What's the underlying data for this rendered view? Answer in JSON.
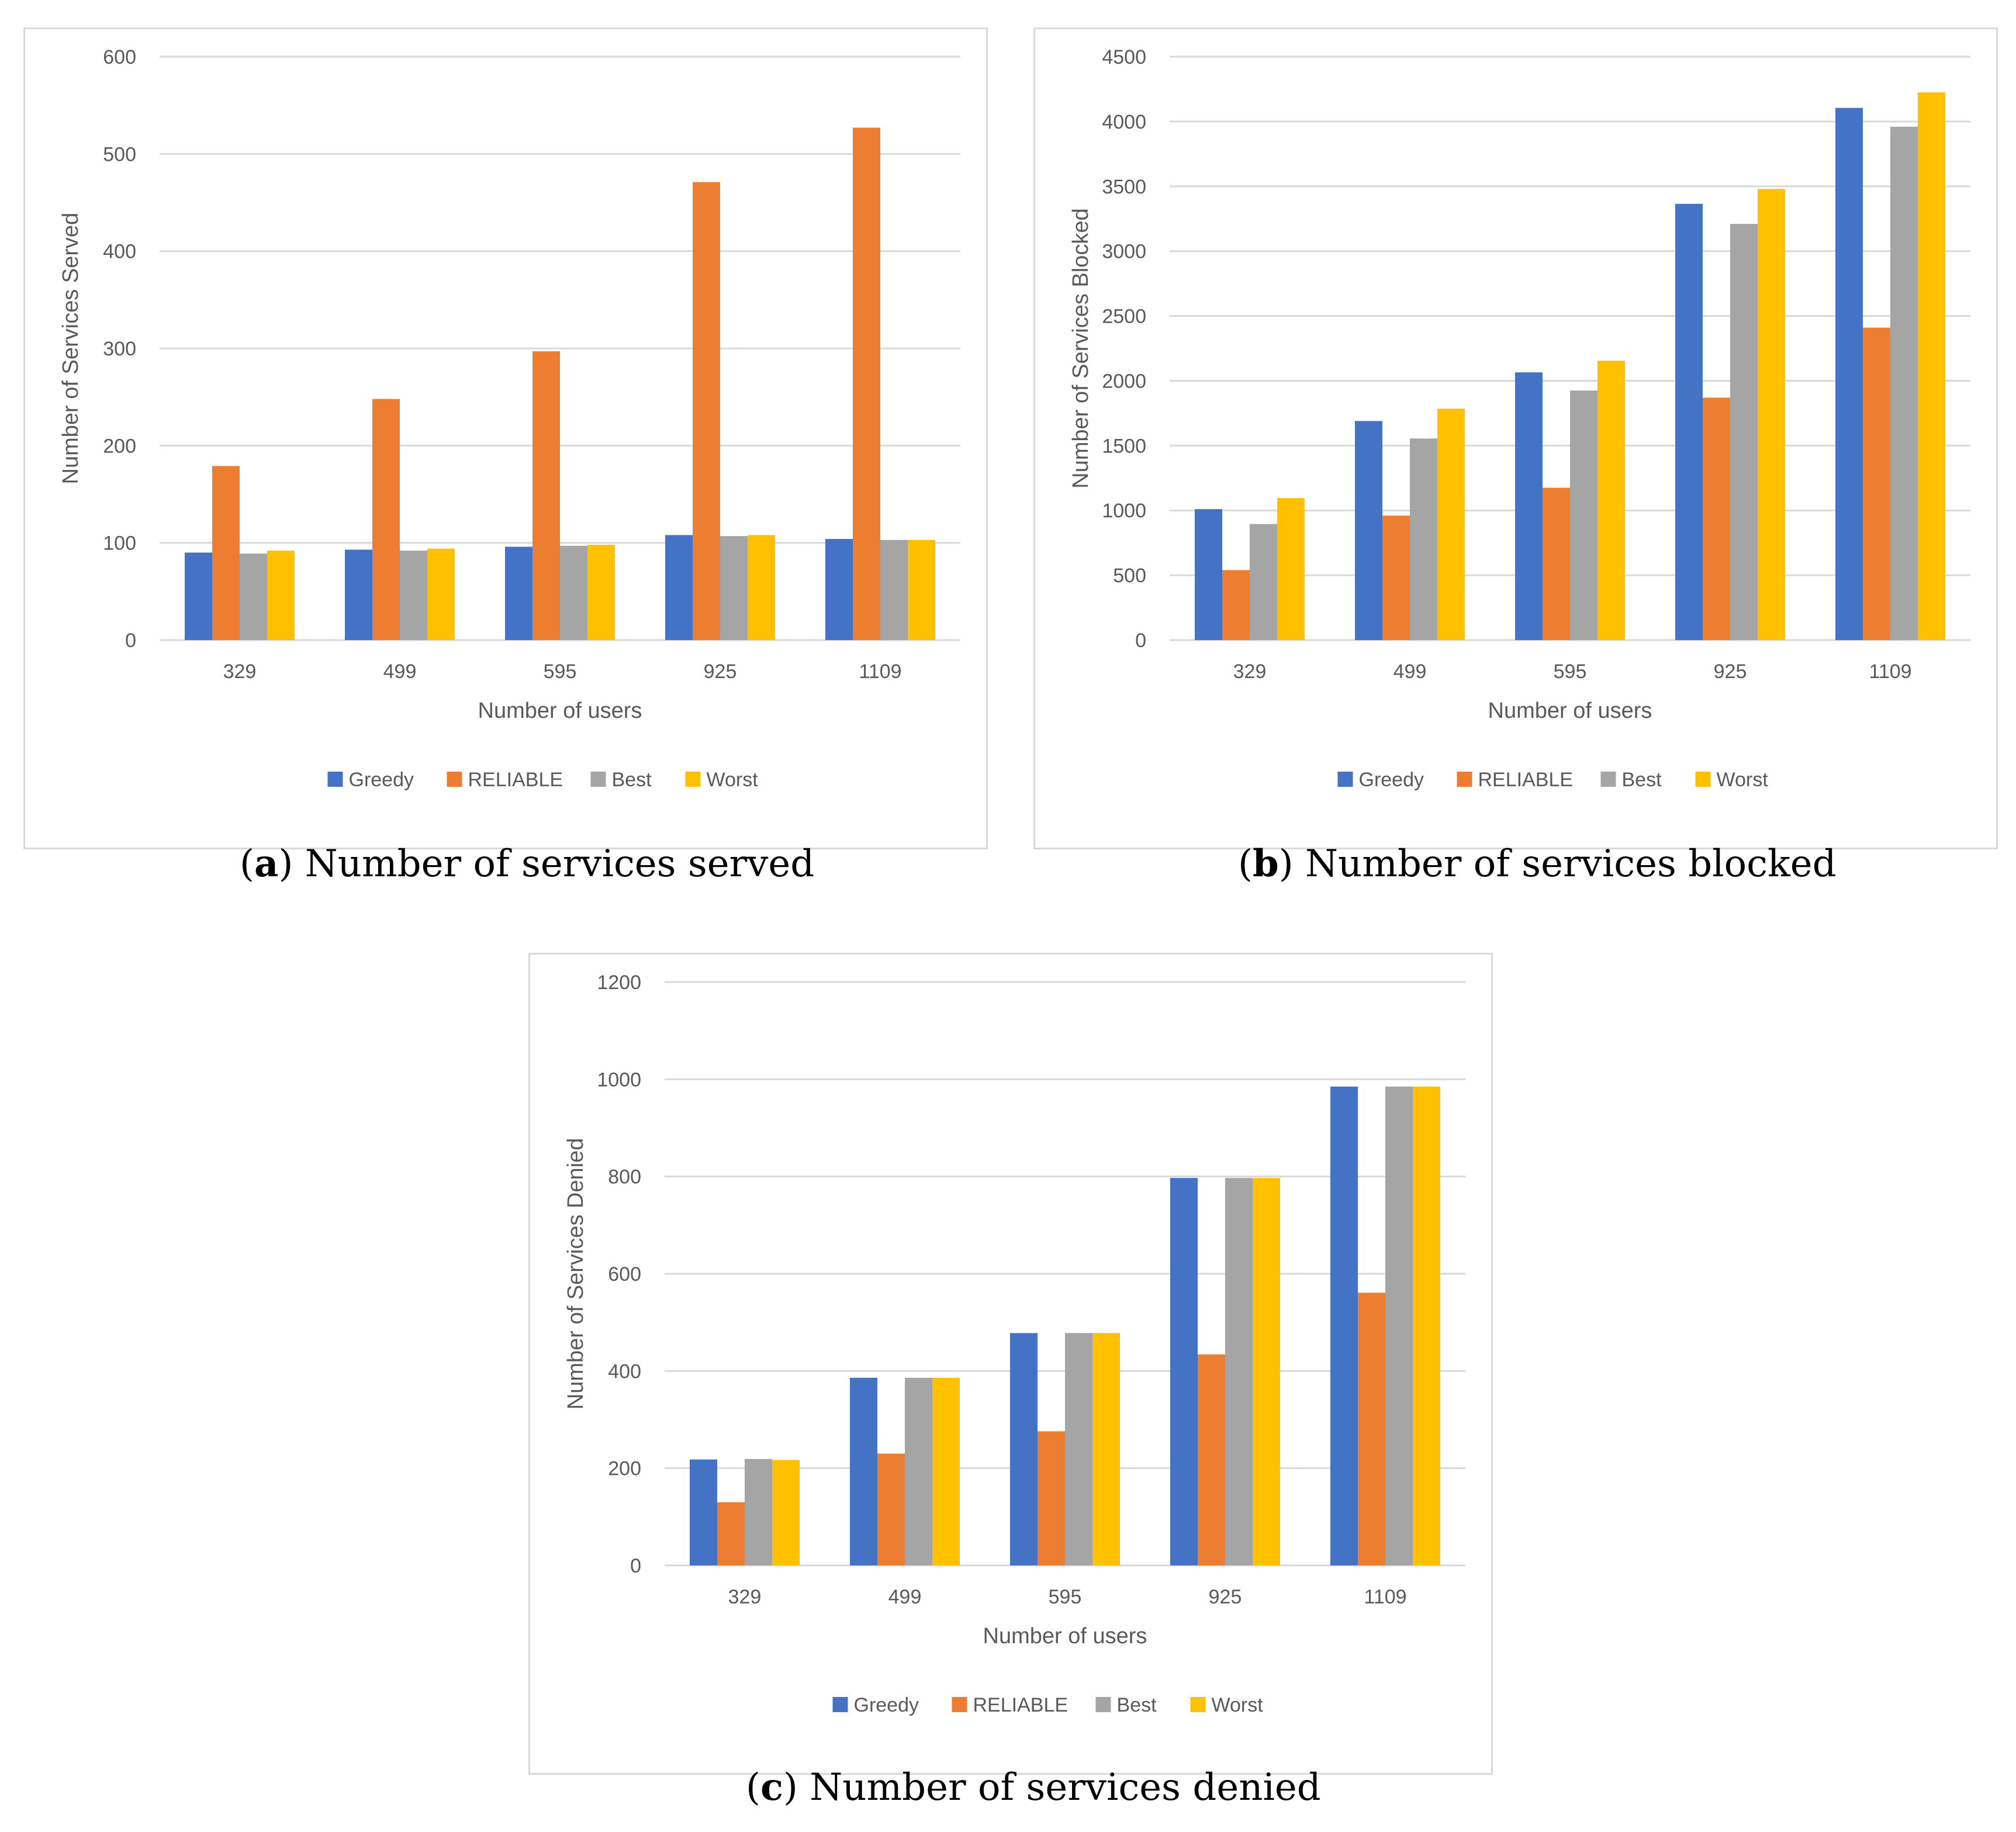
{
  "figure": {
    "captions": [
      {
        "letter": "a",
        "text": "Number of services served"
      },
      {
        "letter": "b",
        "text": "Number of services blocked"
      },
      {
        "letter": "c",
        "text": "Number of services denied"
      }
    ]
  },
  "colors": {
    "Greedy": "#4472c4",
    "RELIABLE": "#ed7d31",
    "Best": "#a5a5a5",
    "Worst": "#ffc000",
    "gridline": "#d9d9d9",
    "text": "#595959"
  },
  "chart_data": [
    {
      "type": "bar",
      "title": "",
      "xlabel": "Number of users",
      "ylabel": "Number of Services Served",
      "categories": [
        "329",
        "499",
        "595",
        "925",
        "1109"
      ],
      "ylim": [
        0,
        600
      ],
      "yticks": [
        0,
        100,
        200,
        300,
        400,
        500,
        600
      ],
      "legend_position": "bottom",
      "grid": true,
      "series": [
        {
          "name": "Greedy",
          "values": [
            90,
            93,
            96,
            108,
            104
          ]
        },
        {
          "name": "RELIABLE",
          "values": [
            179,
            248,
            297,
            471,
            527
          ]
        },
        {
          "name": "Best",
          "values": [
            89,
            92,
            97,
            107,
            103
          ]
        },
        {
          "name": "Worst",
          "values": [
            92,
            94,
            98,
            108,
            103
          ]
        }
      ]
    },
    {
      "type": "bar",
      "title": "",
      "xlabel": "Number of users",
      "ylabel": "Number of Services Blocked",
      "categories": [
        "329",
        "499",
        "595",
        "925",
        "1109"
      ],
      "ylim": [
        0,
        4500
      ],
      "yticks": [
        0,
        500,
        1000,
        1500,
        2000,
        2500,
        3000,
        3500,
        4000,
        4500
      ],
      "legend_position": "bottom",
      "grid": true,
      "series": [
        {
          "name": "Greedy",
          "values": [
            1010,
            1690,
            2065,
            3365,
            4105
          ]
        },
        {
          "name": "RELIABLE",
          "values": [
            540,
            960,
            1175,
            1870,
            2410
          ]
        },
        {
          "name": "Best",
          "values": [
            895,
            1555,
            1925,
            3210,
            3960
          ]
        },
        {
          "name": "Worst",
          "values": [
            1095,
            1785,
            2155,
            3480,
            4225
          ]
        }
      ]
    },
    {
      "type": "bar",
      "title": "",
      "xlabel": "Number of users",
      "ylabel": "Number of Services Denied",
      "categories": [
        "329",
        "499",
        "595",
        "925",
        "1109"
      ],
      "ylim": [
        0,
        1200
      ],
      "yticks": [
        0,
        200,
        400,
        600,
        800,
        1000,
        1200
      ],
      "legend_position": "bottom",
      "grid": true,
      "series": [
        {
          "name": "Greedy",
          "values": [
            218,
            386,
            478,
            797,
            985
          ]
        },
        {
          "name": "RELIABLE",
          "values": [
            130,
            230,
            276,
            434,
            561
          ]
        },
        {
          "name": "Best",
          "values": [
            219,
            386,
            478,
            797,
            985
          ]
        },
        {
          "name": "Worst",
          "values": [
            217,
            386,
            478,
            797,
            985
          ]
        }
      ]
    }
  ]
}
